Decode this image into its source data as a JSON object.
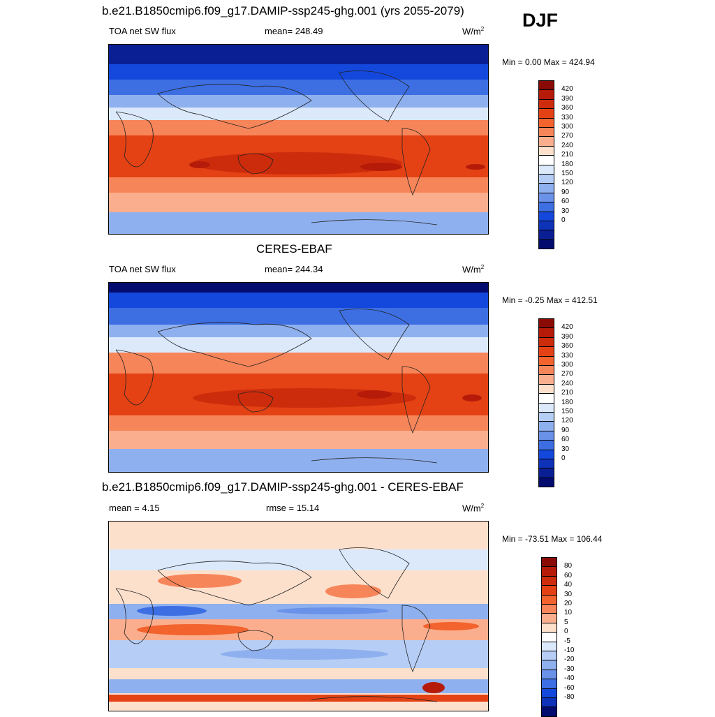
{
  "season": "DJF",
  "panels": [
    {
      "title": "b.e21.B1850cmip6.f09_g17.DAMIP-ssp245-ghg.001 (yrs 2055-2079)",
      "left": "TOA net SW flux",
      "center": "mean= 248.49",
      "units": "W/m",
      "units_sup": "2",
      "minmax": "Min =   0.00 Max = 424.94",
      "colorbar": {
        "labels": [
          "420",
          "390",
          "360",
          "330",
          "300",
          "270",
          "240",
          "210",
          "180",
          "150",
          "120",
          "90",
          "60",
          "30",
          "0"
        ],
        "colors": [
          "#8a0b05",
          "#b51b08",
          "#cd2c0c",
          "#e44214",
          "#f2632d",
          "#f7855a",
          "#fbae8e",
          "#fde0cc",
          "#ffffff",
          "#dbe9fb",
          "#b6cdf5",
          "#8fb0ee",
          "#6a92e8",
          "#3d6fe3",
          "#1448dc",
          "#0f33b8",
          "#0a1f93",
          "#030c6e"
        ]
      }
    },
    {
      "title": "CERES-EBAF",
      "left": "TOA net SW flux",
      "center": "mean= 244.34",
      "units": "W/m",
      "units_sup": "2",
      "minmax": "Min =  -0.25 Max = 412.51",
      "colorbar": {
        "labels": [
          "420",
          "390",
          "360",
          "330",
          "300",
          "270",
          "240",
          "210",
          "180",
          "150",
          "120",
          "90",
          "60",
          "30",
          "0"
        ],
        "colors": [
          "#8a0b05",
          "#b51b08",
          "#cd2c0c",
          "#e44214",
          "#f2632d",
          "#f7855a",
          "#fbae8e",
          "#fde0cc",
          "#ffffff",
          "#dbe9fb",
          "#b6cdf5",
          "#8fb0ee",
          "#6a92e8",
          "#3d6fe3",
          "#1448dc",
          "#0f33b8",
          "#0a1f93",
          "#030c6e"
        ]
      }
    },
    {
      "title": "b.e21.B1850cmip6.f09_g17.DAMIP-ssp245-ghg.001 - CERES-EBAF",
      "left": "mean =   4.15",
      "center": "rmse =  15.14",
      "units": "W/m",
      "units_sup": "2",
      "minmax": "Min = -73.51 Max = 106.44",
      "colorbar": {
        "labels": [
          "80",
          "60",
          "40",
          "30",
          "20",
          "10",
          "5",
          "0",
          "-5",
          "-10",
          "-20",
          "-30",
          "-40",
          "-60",
          "-80"
        ],
        "colors": [
          "#8a0b05",
          "#b51b08",
          "#cd2c0c",
          "#e44214",
          "#f2632d",
          "#f7855a",
          "#fbae8e",
          "#fde0cc",
          "#ffffff",
          "#dbe9fb",
          "#b6cdf5",
          "#8fb0ee",
          "#6a92e8",
          "#3d6fe3",
          "#1448dc",
          "#0f33b8",
          "#030c6e"
        ]
      }
    }
  ]
}
